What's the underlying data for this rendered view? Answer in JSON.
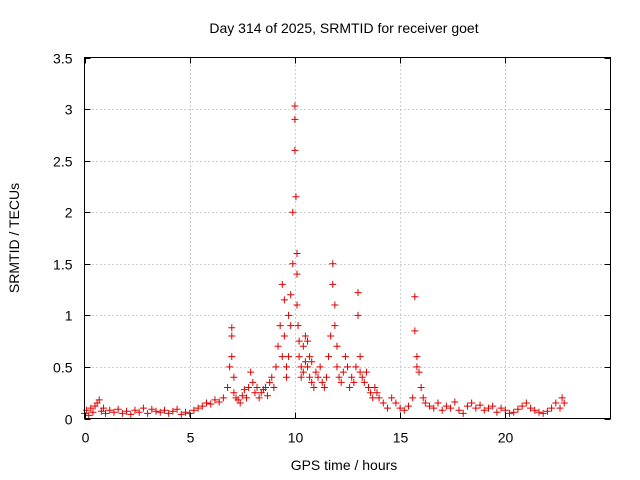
{
  "chart_data": {
    "type": "scatter",
    "title": "Day 314 of 2025, SRMTID for receiver goet",
    "xlabel": "GPS time / hours",
    "ylabel": "SRMTID / TECUs",
    "xlim": [
      0,
      25
    ],
    "ylim": [
      0,
      3.5
    ],
    "xticks": [
      0,
      5,
      10,
      15,
      20
    ],
    "xtick_labels": [
      "0",
      "5",
      "10",
      "15",
      "20"
    ],
    "yticks": [
      0,
      0.5,
      1,
      1.5,
      2,
      2.5,
      3,
      3.5
    ],
    "ytick_labels": [
      "0",
      "0.5",
      "1",
      "1.5",
      "2",
      "2.5",
      "3",
      "3.5"
    ],
    "grid": true,
    "legend": "none",
    "marker": "plus",
    "color": "#dd0000",
    "series": [
      {
        "name": "SRMTID",
        "x": [
          0.0,
          0.1,
          0.2,
          0.3,
          0.4,
          0.5,
          0.6,
          0.7,
          0.8,
          0.9,
          1.0,
          1.2,
          1.4,
          1.6,
          1.8,
          2.0,
          2.2,
          2.4,
          2.6,
          2.8,
          3.0,
          3.2,
          3.4,
          3.6,
          3.8,
          4.0,
          4.2,
          4.4,
          4.6,
          4.8,
          5.0,
          5.2,
          5.4,
          5.6,
          5.8,
          6.0,
          6.2,
          6.4,
          6.6,
          6.8,
          6.9,
          7.0,
          7.0,
          7.0,
          7.1,
          7.1,
          7.2,
          7.3,
          7.4,
          7.5,
          7.6,
          7.7,
          7.8,
          7.9,
          8.0,
          8.1,
          8.2,
          8.3,
          8.4,
          8.5,
          8.6,
          8.7,
          8.8,
          8.9,
          9.0,
          9.1,
          9.2,
          9.3,
          9.4,
          9.4,
          9.5,
          9.5,
          9.6,
          9.6,
          9.7,
          9.7,
          9.8,
          9.8,
          9.9,
          9.9,
          10.0,
          10.0,
          10.0,
          10.05,
          10.1,
          10.1,
          10.1,
          10.15,
          10.2,
          10.2,
          10.3,
          10.3,
          10.4,
          10.4,
          10.5,
          10.5,
          10.6,
          10.6,
          10.7,
          10.7,
          10.8,
          10.8,
          10.9,
          11.0,
          11.1,
          11.2,
          11.3,
          11.4,
          11.5,
          11.6,
          11.7,
          11.8,
          11.8,
          11.9,
          11.9,
          12.0,
          12.0,
          12.1,
          12.2,
          12.3,
          12.4,
          12.5,
          12.6,
          12.7,
          12.8,
          12.9,
          13.0,
          13.0,
          13.1,
          13.1,
          13.2,
          13.3,
          13.4,
          13.5,
          13.6,
          13.7,
          13.8,
          13.9,
          14.0,
          14.2,
          14.4,
          14.6,
          14.8,
          15.0,
          15.2,
          15.4,
          15.6,
          15.7,
          15.7,
          15.8,
          15.8,
          15.9,
          16.0,
          16.1,
          16.2,
          16.4,
          16.6,
          16.8,
          17.0,
          17.2,
          17.4,
          17.6,
          17.8,
          18.0,
          18.2,
          18.4,
          18.6,
          18.8,
          19.0,
          19.2,
          19.4,
          19.6,
          19.8,
          20.0,
          20.2,
          20.4,
          20.6,
          20.8,
          21.0,
          21.2,
          21.4,
          21.6,
          21.8,
          22.0,
          22.2,
          22.4,
          22.6,
          22.7,
          22.8
        ],
        "y": [
          0.05,
          0.08,
          0.03,
          0.1,
          0.06,
          0.12,
          0.15,
          0.18,
          0.07,
          0.1,
          0.05,
          0.08,
          0.06,
          0.09,
          0.05,
          0.07,
          0.04,
          0.08,
          0.06,
          0.1,
          0.05,
          0.09,
          0.07,
          0.06,
          0.08,
          0.05,
          0.07,
          0.09,
          0.04,
          0.06,
          0.05,
          0.08,
          0.1,
          0.12,
          0.15,
          0.14,
          0.18,
          0.16,
          0.2,
          0.3,
          0.5,
          0.88,
          0.8,
          0.6,
          0.4,
          0.25,
          0.2,
          0.18,
          0.15,
          0.22,
          0.28,
          0.2,
          0.3,
          0.45,
          0.35,
          0.25,
          0.3,
          0.2,
          0.25,
          0.28,
          0.3,
          0.22,
          0.35,
          0.4,
          0.3,
          0.5,
          0.7,
          0.9,
          1.3,
          0.6,
          1.15,
          0.8,
          0.5,
          0.4,
          1.0,
          0.6,
          1.2,
          0.9,
          2.0,
          1.5,
          3.03,
          2.9,
          2.6,
          2.15,
          1.6,
          1.4,
          1.1,
          0.9,
          0.75,
          0.6,
          0.5,
          0.4,
          0.7,
          0.45,
          0.8,
          0.55,
          0.75,
          0.5,
          0.6,
          0.4,
          0.55,
          0.35,
          0.3,
          0.45,
          0.4,
          0.5,
          0.35,
          0.3,
          0.4,
          0.6,
          0.8,
          1.5,
          1.3,
          1.1,
          0.9,
          0.7,
          0.5,
          0.4,
          0.35,
          0.45,
          0.6,
          0.5,
          0.3,
          0.4,
          0.35,
          0.5,
          1.22,
          1.0,
          0.6,
          0.45,
          0.4,
          0.35,
          0.45,
          0.3,
          0.25,
          0.2,
          0.3,
          0.25,
          0.2,
          0.15,
          0.1,
          0.2,
          0.15,
          0.1,
          0.08,
          0.12,
          0.2,
          1.18,
          0.85,
          0.6,
          0.5,
          0.45,
          0.3,
          0.2,
          0.15,
          0.12,
          0.1,
          0.15,
          0.08,
          0.12,
          0.1,
          0.16,
          0.08,
          0.05,
          0.12,
          0.15,
          0.1,
          0.13,
          0.08,
          0.1,
          0.12,
          0.06,
          0.1,
          0.08,
          0.05,
          0.06,
          0.09,
          0.12,
          0.15,
          0.1,
          0.08,
          0.06,
          0.05,
          0.07,
          0.1,
          0.15,
          0.1,
          0.2,
          0.15
        ]
      }
    ]
  }
}
